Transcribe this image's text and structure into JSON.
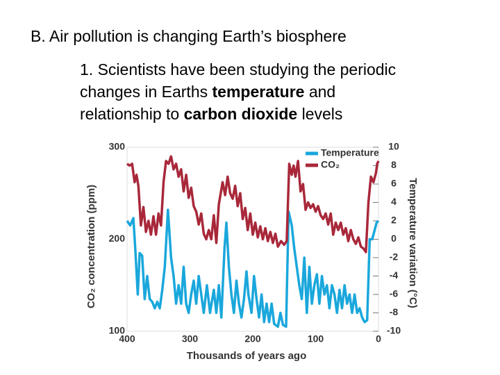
{
  "heading": "B. Air pollution is changing Earth’s biosphere",
  "body": {
    "lines": [
      [
        "1. Scientists have been studying the periodic"
      ],
      [
        "changes in Earths ",
        "temperature",
        " and"
      ],
      [
        "relationship to ",
        "carbon dioxide",
        " levels"
      ]
    ]
  },
  "chart_data": {
    "type": "line",
    "xlabel": "Thousands of years ago",
    "ylabel": "CO₂ concentration (ppm)",
    "y2label": "Temperature variation (°C)",
    "xlim": [
      400,
      0
    ],
    "xticks": [
      400,
      300,
      200,
      100,
      0
    ],
    "ylim": [
      100,
      300
    ],
    "yticks": [
      100,
      200,
      300
    ],
    "y2lim": [
      -10,
      10
    ],
    "y2ticks": [
      -10,
      -8,
      -6,
      -4,
      -2,
      0,
      2,
      4,
      6,
      8,
      10
    ],
    "legend": "upper right",
    "series": [
      {
        "name": "Temperature",
        "color": "#1aa7dc",
        "axis": "y2",
        "x": [
          400,
          395,
          390,
          387,
          383,
          380,
          376,
          372,
          368,
          364,
          360,
          356,
          352,
          348,
          344,
          340,
          335,
          330,
          326,
          322,
          318,
          314,
          310,
          306,
          302,
          298,
          294,
          290,
          286,
          282,
          278,
          273,
          268,
          262,
          258,
          254,
          250,
          245,
          242,
          238,
          234,
          230,
          226,
          222,
          218,
          214,
          210,
          207,
          202,
          198,
          194,
          190,
          186,
          182,
          178,
          174,
          170,
          166,
          160,
          156,
          152,
          147,
          143,
          138,
          134,
          130,
          126,
          122,
          118,
          114,
          110,
          106,
          102,
          98,
          94,
          90,
          86,
          82,
          78,
          74,
          70,
          66,
          62,
          58,
          54,
          50,
          46,
          42,
          38,
          34,
          30,
          26,
          22,
          18,
          14,
          10,
          6,
          3,
          0
        ],
        "values": [
          2,
          1.5,
          2.3,
          -1,
          -6,
          -1.5,
          -1.8,
          -6.5,
          -4,
          -6.5,
          -6.8,
          -7.5,
          -6.8,
          -7.5,
          -5.5,
          -3,
          3.2,
          -2,
          -4,
          -7,
          -5,
          -7,
          -3,
          -7,
          -8,
          -6,
          -4.5,
          -7,
          -4,
          -6,
          -8,
          -5,
          -8,
          -5.5,
          -8,
          -5,
          -8.5,
          -1,
          1.8,
          -3,
          -6,
          -8,
          -4.5,
          -7,
          -8.5,
          -6.5,
          -3.5,
          -6,
          -8,
          -4,
          -6.5,
          -8.5,
          -6,
          -9,
          -7,
          -9,
          -7,
          -9.2,
          -9.5,
          -8,
          -9.3,
          -9.5,
          3,
          1.5,
          -1,
          -3,
          -5,
          -6.5,
          -2,
          -8,
          -3,
          -7,
          -5,
          -3.8,
          -7,
          -4,
          -6,
          -5,
          -7.5,
          -5,
          -6,
          -8,
          -5.5,
          -7.5,
          -5,
          -7,
          -6,
          -8,
          -6,
          -8,
          -7.5,
          -8.5,
          -9,
          -8.8,
          0,
          0,
          1,
          1.8,
          2
        ]
      },
      {
        "name": "CO₂",
        "color": "#a8283a",
        "axis": "y",
        "x": [
          400,
          396,
          392,
          388,
          385,
          382,
          378,
          374,
          370,
          366,
          362,
          358,
          354,
          350,
          346,
          342,
          338,
          334,
          330,
          326,
          322,
          318,
          314,
          310,
          306,
          302,
          298,
          294,
          290,
          286,
          282,
          278,
          274,
          270,
          266,
          262,
          258,
          254,
          248,
          244,
          240,
          236,
          232,
          228,
          224,
          220,
          216,
          212,
          208,
          204,
          200,
          196,
          192,
          188,
          184,
          180,
          176,
          172,
          168,
          164,
          160,
          155,
          150,
          146,
          142,
          138,
          135,
          132,
          128,
          124,
          120,
          116,
          112,
          108,
          104,
          100,
          96,
          92,
          88,
          84,
          80,
          76,
          72,
          68,
          64,
          60,
          56,
          52,
          48,
          44,
          40,
          36,
          32,
          28,
          24,
          20,
          16,
          12,
          8,
          4,
          2,
          0
        ],
        "values": [
          282,
          280,
          282,
          262,
          270,
          258,
          215,
          235,
          208,
          220,
          205,
          225,
          205,
          228,
          215,
          262,
          285,
          282,
          290,
          276,
          282,
          268,
          276,
          252,
          270,
          245,
          256,
          236,
          230,
          216,
          228,
          206,
          200,
          210,
          200,
          226,
          196,
          238,
          262,
          248,
          268,
          250,
          244,
          258,
          236,
          250,
          222,
          234,
          210,
          228,
          205,
          218,
          202,
          214,
          200,
          212,
          198,
          208,
          196,
          206,
          192,
          198,
          194,
          198,
          282,
          270,
          280,
          268,
          285,
          252,
          260,
          232,
          240,
          234,
          238,
          230,
          236,
          226,
          222,
          228,
          216,
          228,
          205,
          218,
          210,
          218,
          205,
          212,
          198,
          210,
          200,
          195,
          202,
          192,
          190,
          186,
          240,
          268,
          262,
          272,
          282,
          285
        ]
      }
    ]
  }
}
